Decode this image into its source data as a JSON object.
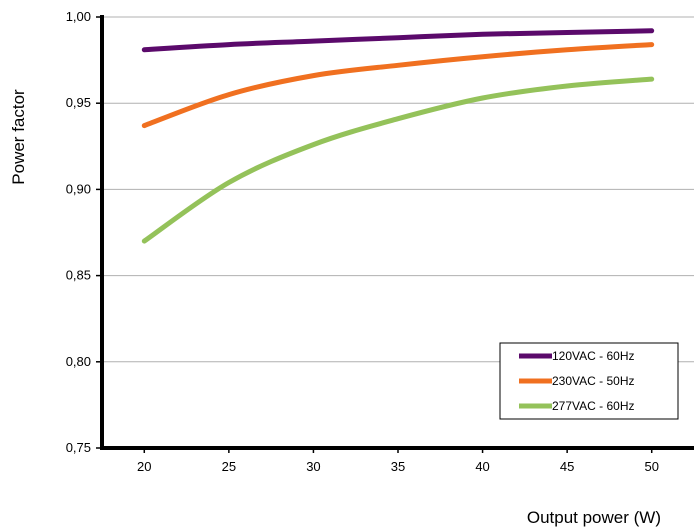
{
  "chart_data": {
    "type": "line",
    "xlabel": "Output power (W)",
    "ylabel": "Power factor",
    "xlim": [
      17.5,
      52.5
    ],
    "ylim": [
      0.75,
      1.0
    ],
    "x_ticks": [
      "20",
      "25",
      "30",
      "35",
      "40",
      "45",
      "50"
    ],
    "y_ticks": [
      "0,75",
      "0,80",
      "0,85",
      "0,90",
      "0,95",
      "1,00"
    ],
    "grid": "horizontal",
    "legend_position": "bottom-right",
    "series": [
      {
        "name": "120VAC - 60Hz",
        "color": "#5b0a6b",
        "x": [
          20,
          25,
          30,
          35,
          40,
          45,
          50
        ],
        "y": [
          0.981,
          0.984,
          0.986,
          0.988,
          0.99,
          0.991,
          0.992
        ]
      },
      {
        "name": "230VAC - 50Hz",
        "color": "#f07020",
        "x": [
          20,
          25,
          30,
          35,
          40,
          45,
          50
        ],
        "y": [
          0.937,
          0.955,
          0.966,
          0.972,
          0.977,
          0.981,
          0.984
        ]
      },
      {
        "name": "277VAC - 60Hz",
        "color": "#94c25a",
        "x": [
          20,
          25,
          30,
          35,
          40,
          45,
          50
        ],
        "y": [
          0.87,
          0.904,
          0.926,
          0.941,
          0.953,
          0.96,
          0.964
        ]
      }
    ]
  }
}
